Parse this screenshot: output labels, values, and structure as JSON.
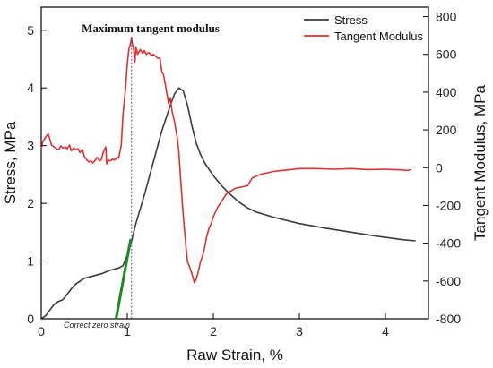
{
  "chart_data": {
    "type": "line",
    "xlabel": "Raw Strain, %",
    "ylabel_left": "Stress, MPa",
    "ylabel_right": "Tangent Modulus, MPa",
    "xlim": [
      0,
      4.5
    ],
    "ylim_left": [
      0,
      5.4
    ],
    "ylim_right": [
      -800,
      850
    ],
    "x_ticks": [
      0,
      1,
      2,
      3,
      4
    ],
    "y_left_ticks": [
      0,
      1,
      2,
      3,
      4,
      5
    ],
    "y_right_ticks": [
      -800,
      -600,
      -400,
      -200,
      0,
      200,
      400,
      600,
      800
    ],
    "grid": false,
    "legend_position": "top-right",
    "annotations": {
      "max_tangent": "Maximum tangent modulus",
      "zero_strain": "Correct zero strain",
      "max_tangent_x": 1.05
    },
    "series": [
      {
        "name": "Stress",
        "axis": "left",
        "color": "#3a3a3a",
        "points": [
          [
            0.0,
            0.0
          ],
          [
            0.05,
            0.05
          ],
          [
            0.1,
            0.15
          ],
          [
            0.15,
            0.25
          ],
          [
            0.2,
            0.3
          ],
          [
            0.25,
            0.33
          ],
          [
            0.3,
            0.42
          ],
          [
            0.35,
            0.52
          ],
          [
            0.4,
            0.6
          ],
          [
            0.45,
            0.65
          ],
          [
            0.5,
            0.7
          ],
          [
            0.6,
            0.74
          ],
          [
            0.7,
            0.78
          ],
          [
            0.8,
            0.84
          ],
          [
            0.9,
            0.88
          ],
          [
            0.95,
            0.92
          ],
          [
            1.0,
            1.1
          ],
          [
            1.05,
            1.35
          ],
          [
            1.1,
            1.65
          ],
          [
            1.2,
            2.15
          ],
          [
            1.3,
            2.7
          ],
          [
            1.4,
            3.25
          ],
          [
            1.5,
            3.7
          ],
          [
            1.55,
            3.9
          ],
          [
            1.6,
            4.0
          ],
          [
            1.65,
            3.95
          ],
          [
            1.7,
            3.7
          ],
          [
            1.75,
            3.35
          ],
          [
            1.8,
            3.05
          ],
          [
            1.85,
            2.85
          ],
          [
            1.9,
            2.7
          ],
          [
            2.0,
            2.48
          ],
          [
            2.1,
            2.3
          ],
          [
            2.2,
            2.15
          ],
          [
            2.3,
            2.02
          ],
          [
            2.4,
            1.92
          ],
          [
            2.5,
            1.85
          ],
          [
            2.7,
            1.76
          ],
          [
            3.0,
            1.65
          ],
          [
            3.3,
            1.57
          ],
          [
            3.6,
            1.5
          ],
          [
            3.9,
            1.43
          ],
          [
            4.2,
            1.37
          ],
          [
            4.35,
            1.35
          ]
        ]
      },
      {
        "name": "Tangent Modulus",
        "axis": "right",
        "color": "#e03131",
        "points": [
          [
            0.0,
            100
          ],
          [
            0.02,
            140
          ],
          [
            0.05,
            160
          ],
          [
            0.08,
            180
          ],
          [
            0.1,
            150
          ],
          [
            0.12,
            120
          ],
          [
            0.15,
            110
          ],
          [
            0.18,
            100
          ],
          [
            0.2,
            95
          ],
          [
            0.23,
            115
          ],
          [
            0.25,
            105
          ],
          [
            0.28,
            110
          ],
          [
            0.3,
            100
          ],
          [
            0.33,
            120
          ],
          [
            0.35,
            90
          ],
          [
            0.38,
            105
          ],
          [
            0.4,
            95
          ],
          [
            0.43,
            100
          ],
          [
            0.45,
            80
          ],
          [
            0.48,
            95
          ],
          [
            0.5,
            60
          ],
          [
            0.53,
            40
          ],
          [
            0.55,
            30
          ],
          [
            0.58,
            35
          ],
          [
            0.6,
            25
          ],
          [
            0.63,
            40
          ],
          [
            0.65,
            55
          ],
          [
            0.68,
            35
          ],
          [
            0.7,
            45
          ],
          [
            0.72,
            80
          ],
          [
            0.75,
            110
          ],
          [
            0.76,
            20
          ],
          [
            0.78,
            40
          ],
          [
            0.8,
            35
          ],
          [
            0.83,
            45
          ],
          [
            0.85,
            40
          ],
          [
            0.88,
            55
          ],
          [
            0.9,
            50
          ],
          [
            0.93,
            120
          ],
          [
            0.95,
            280
          ],
          [
            0.98,
            420
          ],
          [
            1.0,
            550
          ],
          [
            1.02,
            630
          ],
          [
            1.04,
            660
          ],
          [
            1.05,
            690
          ],
          [
            1.06,
            650
          ],
          [
            1.07,
            640
          ],
          [
            1.08,
            600
          ],
          [
            1.09,
            560
          ],
          [
            1.1,
            640
          ],
          [
            1.12,
            600
          ],
          [
            1.15,
            625
          ],
          [
            1.18,
            605
          ],
          [
            1.2,
            620
          ],
          [
            1.22,
            600
          ],
          [
            1.25,
            610
          ],
          [
            1.28,
            595
          ],
          [
            1.3,
            600
          ],
          [
            1.33,
            590
          ],
          [
            1.35,
            580
          ],
          [
            1.38,
            580
          ],
          [
            1.4,
            510
          ],
          [
            1.42,
            495
          ],
          [
            1.45,
            420
          ],
          [
            1.48,
            340
          ],
          [
            1.5,
            370
          ],
          [
            1.52,
            300
          ],
          [
            1.55,
            240
          ],
          [
            1.58,
            160
          ],
          [
            1.6,
            80
          ],
          [
            1.62,
            -60
          ],
          [
            1.65,
            -250
          ],
          [
            1.68,
            -410
          ],
          [
            1.7,
            -500
          ],
          [
            1.72,
            -520
          ],
          [
            1.75,
            -560
          ],
          [
            1.78,
            -610
          ],
          [
            1.8,
            -590
          ],
          [
            1.82,
            -560
          ],
          [
            1.85,
            -500
          ],
          [
            1.88,
            -460
          ],
          [
            1.9,
            -420
          ],
          [
            1.92,
            -370
          ],
          [
            1.95,
            -320
          ],
          [
            1.98,
            -290
          ],
          [
            2.0,
            -260
          ],
          [
            2.05,
            -210
          ],
          [
            2.1,
            -175
          ],
          [
            2.15,
            -140
          ],
          [
            2.2,
            -125
          ],
          [
            2.25,
            -110
          ],
          [
            2.3,
            -105
          ],
          [
            2.35,
            -100
          ],
          [
            2.4,
            -95
          ],
          [
            2.45,
            -55
          ],
          [
            2.5,
            -45
          ],
          [
            2.55,
            -35
          ],
          [
            2.6,
            -30
          ],
          [
            2.7,
            -20
          ],
          [
            2.8,
            -15
          ],
          [
            2.9,
            -10
          ],
          [
            3.0,
            -5
          ],
          [
            3.2,
            -5
          ],
          [
            3.4,
            -8
          ],
          [
            3.6,
            -5
          ],
          [
            3.8,
            -10
          ],
          [
            4.0,
            -8
          ],
          [
            4.1,
            -10
          ],
          [
            4.2,
            -12
          ],
          [
            4.25,
            -15
          ],
          [
            4.3,
            -10
          ]
        ]
      },
      {
        "name": "",
        "axis": "left",
        "color": "#1a8a1a",
        "points": [
          [
            0.87,
            0.0
          ],
          [
            1.04,
            1.38
          ]
        ]
      }
    ]
  }
}
